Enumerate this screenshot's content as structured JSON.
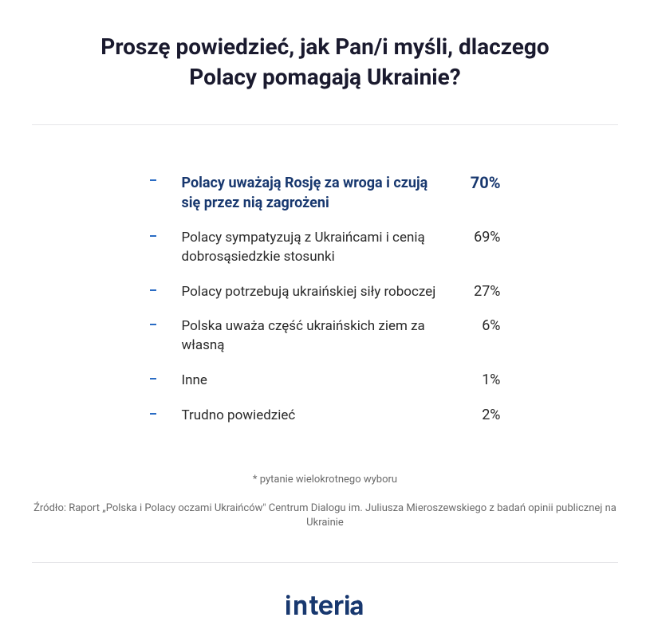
{
  "title": "Proszę powiedzieć, jak Pan/i myśli, dlaczego Polacy pomagają Ukrainie?",
  "highlight_color": "#18386f",
  "bullet_color": "#2a6cc4",
  "text_color": "#2a2a2a",
  "muted_color": "#6a6a6a",
  "background_color": "#ffffff",
  "divider_color": "#e5e5e8",
  "title_fontsize": 28,
  "label_fontsize": 17,
  "value_fontsize": 18,
  "highlighted_index": 0,
  "rows": [
    {
      "label": "Polacy uważają Rosję za wroga i czują się przez nią zagrożeni",
      "value": "70%",
      "highlighted": true
    },
    {
      "label": "Polacy sympatyzują z Ukraińcami i cenią dobrosąsiedzkie stosunki",
      "value": "69%",
      "highlighted": false
    },
    {
      "label": "Polacy potrzebują ukraińskiej siły roboczej",
      "value": "27%",
      "highlighted": false
    },
    {
      "label": "Polska uważa część ukraińskich ziem za własną",
      "value": "6%",
      "highlighted": false
    },
    {
      "label": "Inne",
      "value": "1%",
      "highlighted": false
    },
    {
      "label": "Trudno powiedzieć",
      "value": "2%",
      "highlighted": false
    }
  ],
  "note": "* pytanie wielokrotnego wyboru",
  "source": "Źródło: Raport „Polska i Polacy oczami Ukraińców\" Centrum Dialogu im. Juliusza Mieroszewskiego z badań opinii publicznej na Ukrainie",
  "logo_text": "interia"
}
